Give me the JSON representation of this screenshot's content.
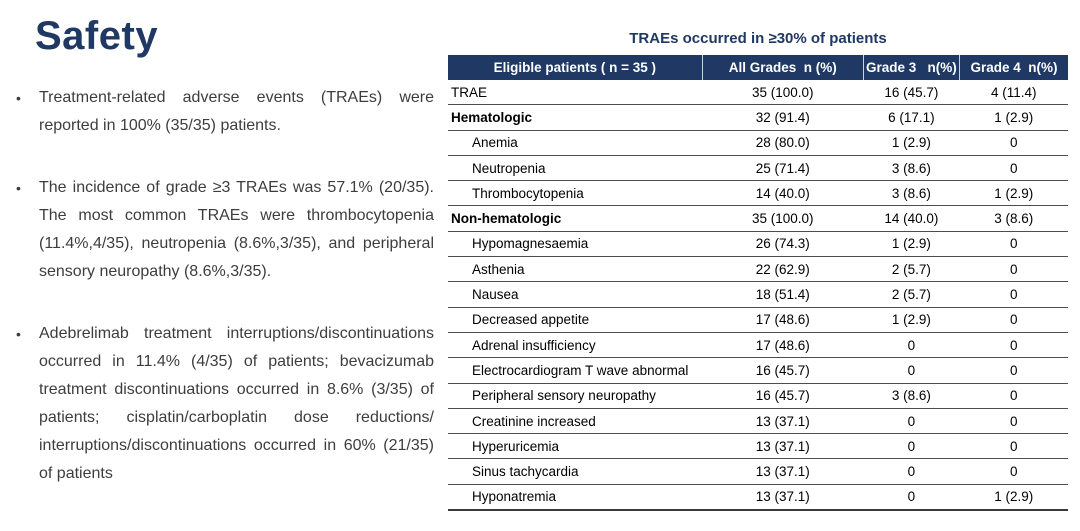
{
  "slide": {
    "title": "Safety",
    "accent_color": "#1F3864"
  },
  "bullets": [
    "Treatment-related adverse events (TRAEs) were reported in 100% (35/35) patients.",
    "The incidence of grade ≥3 TRAEs was 57.1% (20/35). The most common TRAEs were thrombocytopenia (11.4%,4/35), neutropenia (8.6%,3/35), and peripheral sensory neuropathy (8.6%,3/35).",
    "Adebrelimab treatment interruptions/discontinuations occurred in 11.4% (4/35) of patients; bevacizumab treatment discontinuations occurred in 8.6% (3/35) of patients; cisplatin/carboplatin dose reductions/ interruptions/discontinuations occurred in 60% (21/35) of patients"
  ],
  "table": {
    "title": "TRAEs occurred in ≥30% of patients",
    "headers": [
      "Eligible patients ( n = 35 )",
      "All Grades  n (%)",
      "Grade 3   n(%)",
      "Grade 4  n(%)"
    ],
    "header_bg": "#1F3864",
    "rows": [
      {
        "label": "TRAE",
        "style": "top",
        "all_grades": "35 (100.0)",
        "grade3": "16 (45.7)",
        "grade4": "4 (11.4)"
      },
      {
        "label": "Hematologic",
        "style": "bold",
        "all_grades": "32 (91.4)",
        "grade3": "6 (17.1)",
        "grade4": "1 (2.9)"
      },
      {
        "label": "Anemia",
        "style": "sub",
        "all_grades": "28 (80.0)",
        "grade3": "1 (2.9)",
        "grade4": "0"
      },
      {
        "label": "Neutropenia",
        "style": "sub",
        "all_grades": "25 (71.4)",
        "grade3": "3 (8.6)",
        "grade4": "0"
      },
      {
        "label": "Thrombocytopenia",
        "style": "sub",
        "all_grades": "14 (40.0)",
        "grade3": "3 (8.6)",
        "grade4": "1 (2.9)"
      },
      {
        "label": "Non-hematologic",
        "style": "bold",
        "all_grades": "35 (100.0)",
        "grade3": "14 (40.0)",
        "grade4": "3 (8.6)"
      },
      {
        "label": "Hypomagnesaemia",
        "style": "sub",
        "all_grades": "26 (74.3)",
        "grade3": "1 (2.9)",
        "grade4": "0"
      },
      {
        "label": "Asthenia",
        "style": "sub",
        "all_grades": "22 (62.9)",
        "grade3": "2 (5.7)",
        "grade4": "0"
      },
      {
        "label": "Nausea",
        "style": "sub",
        "all_grades": "18 (51.4)",
        "grade3": "2 (5.7)",
        "grade4": "0"
      },
      {
        "label": "Decreased appetite",
        "style": "sub",
        "all_grades": "17 (48.6)",
        "grade3": "1 (2.9)",
        "grade4": "0"
      },
      {
        "label": "Adrenal insufficiency",
        "style": "sub",
        "all_grades": "17 (48.6)",
        "grade3": "0",
        "grade4": "0"
      },
      {
        "label": "Electrocardiogram T wave abnormal",
        "style": "sub",
        "all_grades": "16 (45.7)",
        "grade3": "0",
        "grade4": "0"
      },
      {
        "label": "Peripheral sensory neuropathy",
        "style": "sub",
        "all_grades": "16 (45.7)",
        "grade3": "3 (8.6)",
        "grade4": "0"
      },
      {
        "label": "Creatinine increased",
        "style": "sub",
        "all_grades": "13 (37.1)",
        "grade3": "0",
        "grade4": "0"
      },
      {
        "label": "Hyperuricemia",
        "style": "sub",
        "all_grades": "13 (37.1)",
        "grade3": "0",
        "grade4": "0"
      },
      {
        "label": "Sinus tachycardia",
        "style": "sub",
        "all_grades": "13 (37.1)",
        "grade3": "0",
        "grade4": "0"
      },
      {
        "label": "Hyponatremia",
        "style": "sub",
        "all_grades": "13 (37.1)",
        "grade3": "0",
        "grade4": "1 (2.9)"
      }
    ]
  }
}
